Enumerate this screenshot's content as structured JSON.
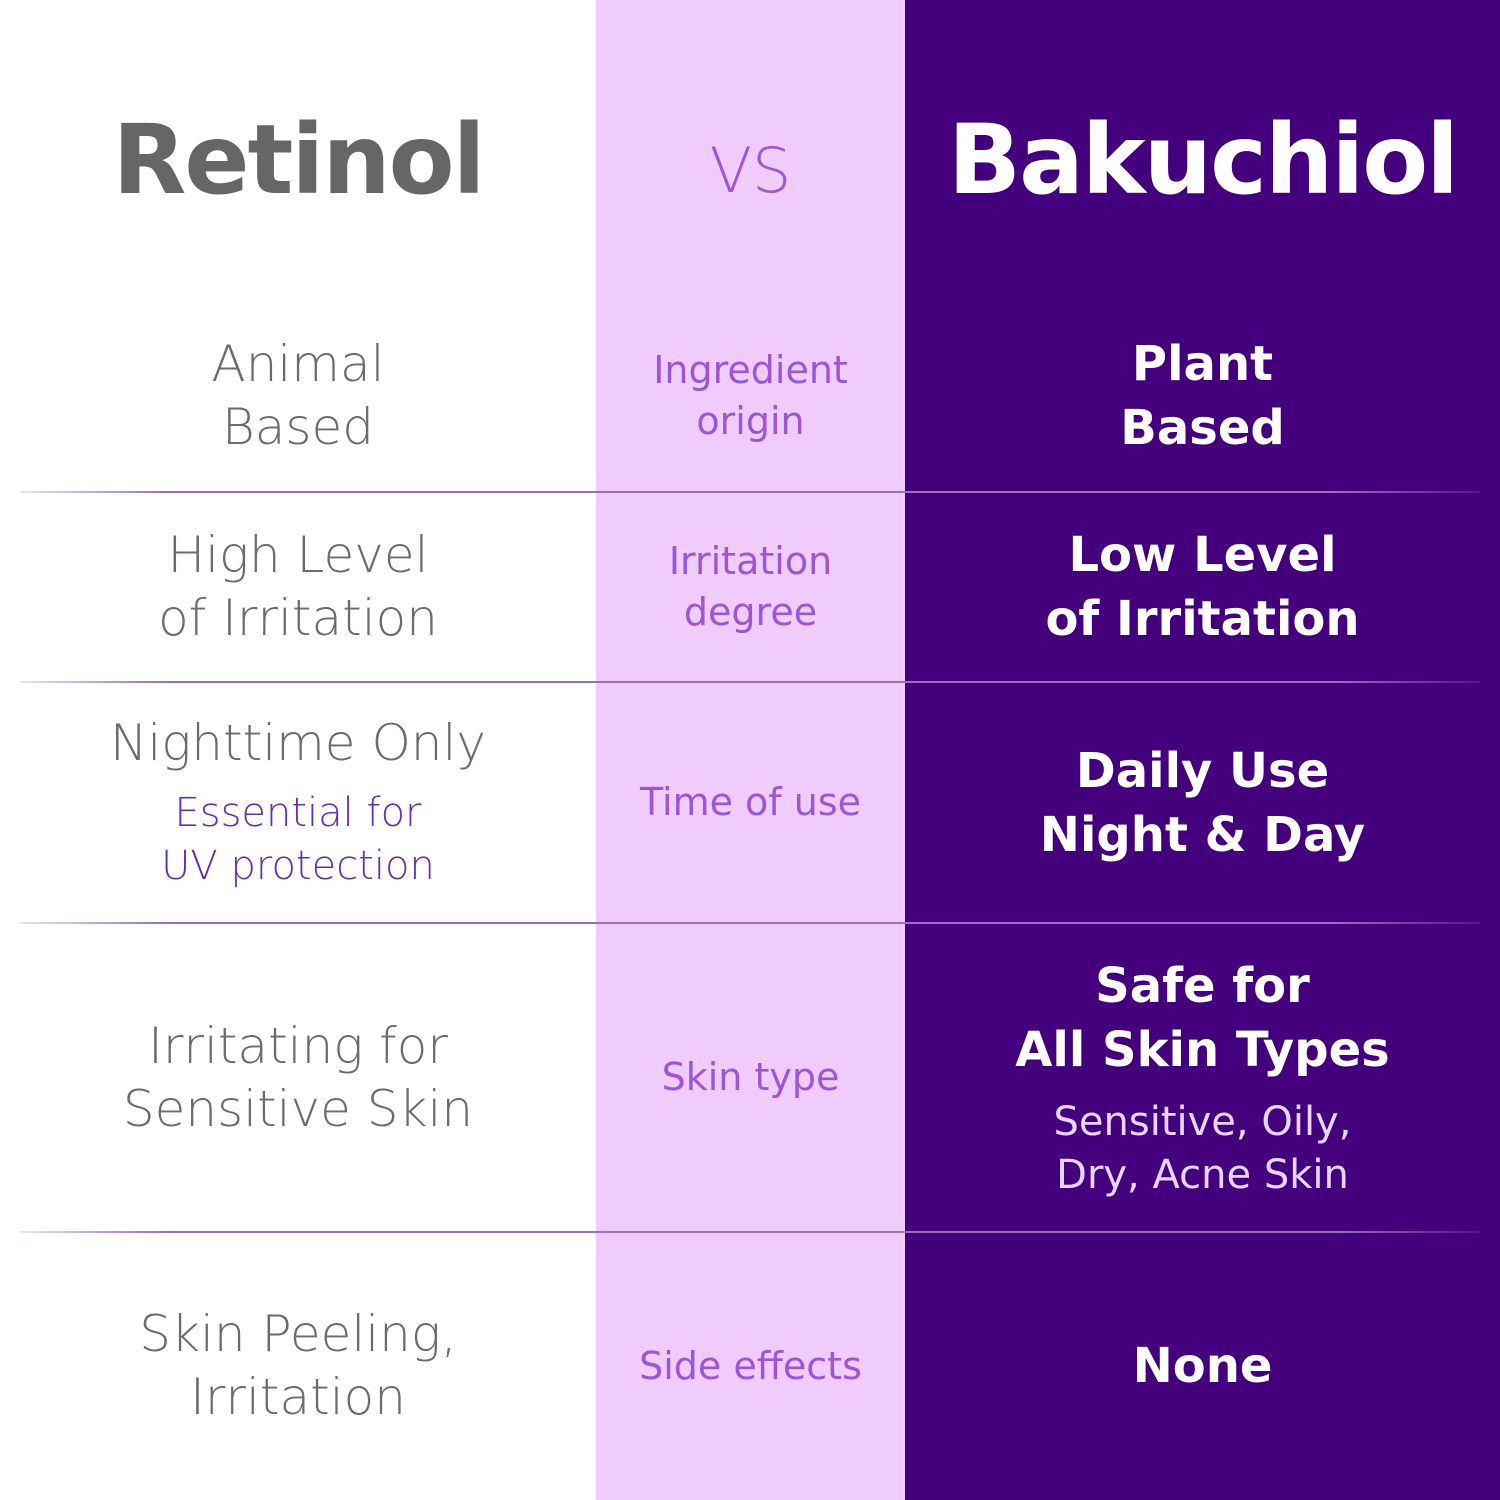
{
  "colors": {
    "left_bg": "#ffffff",
    "middle_bg": "#f0cbfe",
    "right_bg": "#44007c",
    "divider": "#9b6fc0"
  },
  "header": {
    "left": "Retinol",
    "middle": "VS",
    "right": "Bakuchiol"
  },
  "rows": [
    {
      "left": [
        "Animal",
        "Based"
      ],
      "middle": [
        "Ingredient",
        "origin"
      ],
      "right": [
        "Plant",
        "Based"
      ]
    },
    {
      "left": [
        "High Level",
        "of Irritation"
      ],
      "middle": [
        "Irritation",
        "degree"
      ],
      "right": [
        "Low Level",
        "of Irritation"
      ]
    },
    {
      "left": [
        "Nighttime Only"
      ],
      "left_note": [
        "Essential for",
        "UV protection"
      ],
      "middle": [
        "Time of use"
      ],
      "right": [
        "Daily Use",
        "Night & Day"
      ]
    },
    {
      "left": [
        "Irritating for",
        "Sensitive Skin"
      ],
      "middle": [
        "Skin type"
      ],
      "right": [
        "Safe for",
        "All Skin Types"
      ],
      "right_note": [
        "Sensitive, Oily,",
        "Dry, Acne Skin"
      ]
    },
    {
      "left": [
        "Skin Peeling,",
        "Irritation"
      ],
      "middle": [
        "Side effects"
      ],
      "right": [
        "None"
      ]
    }
  ]
}
